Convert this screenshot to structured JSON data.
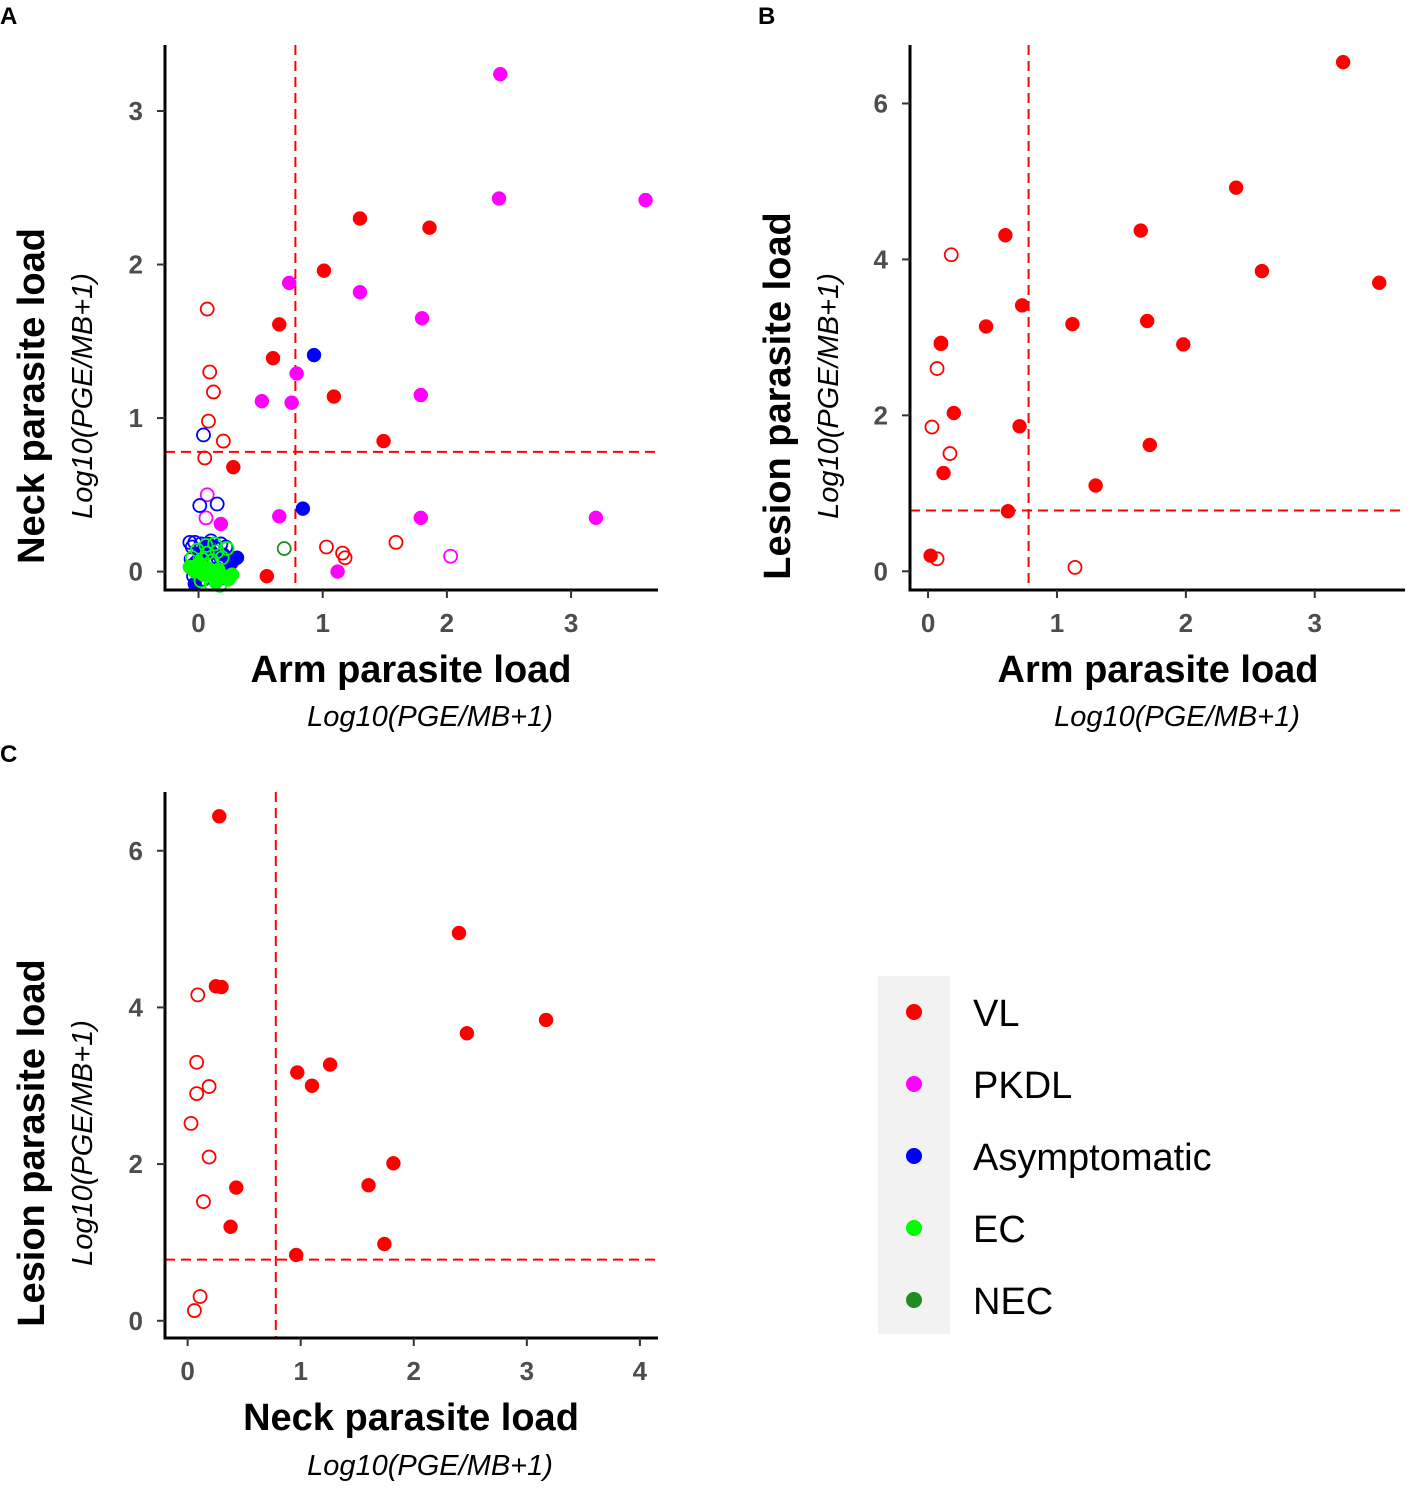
{
  "colors": {
    "VL": "#ff0000",
    "PKDL": "#ff00ff",
    "Asymptomatic": "#0000ff",
    "EC": "#00ff00",
    "NEC": "#228b22",
    "threshold": "#ff0000"
  },
  "legend": {
    "entries": [
      {
        "key": "VL",
        "label": "VL"
      },
      {
        "key": "PKDL",
        "label": "PKDL"
      },
      {
        "key": "Asymptomatic",
        "label": "Asymptomatic"
      },
      {
        "key": "EC",
        "label": "EC"
      },
      {
        "key": "NEC",
        "label": "NEC"
      }
    ]
  },
  "chart_data": [
    {
      "panel": "A",
      "type": "scatter",
      "xlabel": "Arm parasite load",
      "xsublabel": "Log10(PGE/MB+1)",
      "ylabel": "Neck parasite load",
      "ysublabel": "Log10(PGE/MB+1)",
      "xlim": [
        -0.27,
        3.7
      ],
      "ylim": [
        -0.12,
        3.43
      ],
      "xticks": [
        0,
        1,
        2,
        3
      ],
      "yticks": [
        0,
        1,
        2,
        3
      ],
      "threshold_x": 0.78,
      "threshold_y": 0.78,
      "points": [
        {
          "x": 2.43,
          "y": 3.24,
          "g": "PKDL",
          "f": true
        },
        {
          "x": 2.42,
          "y": 2.43,
          "g": "PKDL",
          "f": true
        },
        {
          "x": 3.6,
          "y": 2.42,
          "g": "PKDL",
          "f": true
        },
        {
          "x": 0.73,
          "y": 1.88,
          "g": "PKDL",
          "f": true
        },
        {
          "x": 1.3,
          "y": 1.82,
          "g": "PKDL",
          "f": true
        },
        {
          "x": 1.8,
          "y": 1.65,
          "g": "PKDL",
          "f": true
        },
        {
          "x": 0.79,
          "y": 1.29,
          "g": "PKDL",
          "f": true
        },
        {
          "x": 0.51,
          "y": 1.11,
          "g": "PKDL",
          "f": true
        },
        {
          "x": 0.75,
          "y": 1.1,
          "g": "PKDL",
          "f": true
        },
        {
          "x": 1.79,
          "y": 1.15,
          "g": "PKDL",
          "f": true
        },
        {
          "x": 0.65,
          "y": 0.36,
          "g": "PKDL",
          "f": true
        },
        {
          "x": 1.79,
          "y": 0.35,
          "g": "PKDL",
          "f": true
        },
        {
          "x": 3.2,
          "y": 0.35,
          "g": "PKDL",
          "f": true
        },
        {
          "x": 1.12,
          "y": 0.0,
          "g": "PKDL",
          "f": true
        },
        {
          "x": 0.18,
          "y": 0.31,
          "g": "PKDL",
          "f": true
        },
        {
          "x": 2.03,
          "y": 0.1,
          "g": "PKDL",
          "f": false
        },
        {
          "x": 0.07,
          "y": 0.5,
          "g": "PKDL",
          "f": false
        },
        {
          "x": 0.06,
          "y": 0.35,
          "g": "PKDL",
          "f": false
        },
        {
          "x": 1.3,
          "y": 2.3,
          "g": "VL",
          "f": true
        },
        {
          "x": 1.86,
          "y": 2.24,
          "g": "VL",
          "f": true
        },
        {
          "x": 1.01,
          "y": 1.96,
          "g": "VL",
          "f": true
        },
        {
          "x": 0.65,
          "y": 1.61,
          "g": "VL",
          "f": true
        },
        {
          "x": 0.6,
          "y": 1.39,
          "g": "VL",
          "f": true
        },
        {
          "x": 1.09,
          "y": 1.14,
          "g": "VL",
          "f": true
        },
        {
          "x": 1.49,
          "y": 0.85,
          "g": "VL",
          "f": true
        },
        {
          "x": 0.28,
          "y": 0.68,
          "g": "VL",
          "f": true
        },
        {
          "x": 0.55,
          "y": -0.03,
          "g": "VL",
          "f": true
        },
        {
          "x": 0.07,
          "y": 1.71,
          "g": "VL",
          "f": false
        },
        {
          "x": 0.09,
          "y": 1.3,
          "g": "VL",
          "f": false
        },
        {
          "x": 0.12,
          "y": 1.17,
          "g": "VL",
          "f": false
        },
        {
          "x": 0.08,
          "y": 0.98,
          "g": "VL",
          "f": false
        },
        {
          "x": 0.2,
          "y": 0.85,
          "g": "VL",
          "f": false
        },
        {
          "x": 0.05,
          "y": 0.74,
          "g": "VL",
          "f": false
        },
        {
          "x": 1.03,
          "y": 0.16,
          "g": "VL",
          "f": false
        },
        {
          "x": 1.16,
          "y": 0.12,
          "g": "VL",
          "f": false
        },
        {
          "x": 1.18,
          "y": 0.09,
          "g": "VL",
          "f": false
        },
        {
          "x": 1.59,
          "y": 0.19,
          "g": "VL",
          "f": false
        },
        {
          "x": 0.02,
          "y": 0.1,
          "g": "VL",
          "f": false
        },
        {
          "x": 0.27,
          "y": 0.06,
          "g": "VL",
          "f": true
        },
        {
          "x": 0.93,
          "y": 1.41,
          "g": "Asymptomatic",
          "f": true
        },
        {
          "x": 0.84,
          "y": 0.41,
          "g": "Asymptomatic",
          "f": true
        },
        {
          "x": 0.04,
          "y": 0.89,
          "g": "Asymptomatic",
          "f": false
        },
        {
          "x": 0.01,
          "y": 0.43,
          "g": "Asymptomatic",
          "f": false
        },
        {
          "x": 0.15,
          "y": 0.44,
          "g": "Asymptomatic",
          "f": false
        },
        {
          "x": -0.07,
          "y": 0.19,
          "g": "Asymptomatic",
          "f": false
        },
        {
          "x": -0.05,
          "y": 0.16,
          "g": "Asymptomatic",
          "f": false
        },
        {
          "x": -0.03,
          "y": 0.19,
          "g": "Asymptomatic",
          "f": false
        },
        {
          "x": 0.02,
          "y": 0.18,
          "g": "Asymptomatic",
          "f": false
        },
        {
          "x": 0.06,
          "y": 0.14,
          "g": "Asymptomatic",
          "f": false
        },
        {
          "x": 0.1,
          "y": 0.2,
          "g": "Asymptomatic",
          "f": false
        },
        {
          "x": 0.14,
          "y": 0.15,
          "g": "Asymptomatic",
          "f": false
        },
        {
          "x": 0.18,
          "y": 0.18,
          "g": "Asymptomatic",
          "f": false
        },
        {
          "x": 0.22,
          "y": 0.16,
          "g": "Asymptomatic",
          "f": false
        },
        {
          "x": -0.06,
          "y": 0.08,
          "g": "Asymptomatic",
          "f": false
        },
        {
          "x": -0.02,
          "y": 0.06,
          "g": "Asymptomatic",
          "f": false
        },
        {
          "x": 0.03,
          "y": 0.09,
          "g": "Asymptomatic",
          "f": false
        },
        {
          "x": 0.09,
          "y": 0.05,
          "g": "Asymptomatic",
          "f": false
        },
        {
          "x": 0.16,
          "y": 0.08,
          "g": "Asymptomatic",
          "f": false
        },
        {
          "x": 0.21,
          "y": 0.05,
          "g": "Asymptomatic",
          "f": false
        },
        {
          "x": -0.04,
          "y": -0.03,
          "g": "Asymptomatic",
          "f": false
        },
        {
          "x": 0.04,
          "y": -0.05,
          "g": "Asymptomatic",
          "f": false
        },
        {
          "x": 0.12,
          "y": -0.02,
          "g": "Asymptomatic",
          "f": false
        },
        {
          "x": 0.19,
          "y": -0.04,
          "g": "Asymptomatic",
          "f": false
        },
        {
          "x": -0.05,
          "y": 0.04,
          "g": "Asymptomatic",
          "f": true
        },
        {
          "x": 0.01,
          "y": 0.12,
          "g": "Asymptomatic",
          "f": true
        },
        {
          "x": 0.05,
          "y": 0.0,
          "g": "Asymptomatic",
          "f": true
        },
        {
          "x": 0.1,
          "y": 0.13,
          "g": "Asymptomatic",
          "f": true
        },
        {
          "x": 0.15,
          "y": 0.02,
          "g": "Asymptomatic",
          "f": true
        },
        {
          "x": 0.2,
          "y": 0.11,
          "g": "Asymptomatic",
          "f": true
        },
        {
          "x": 0.25,
          "y": 0.04,
          "g": "Asymptomatic",
          "f": true
        },
        {
          "x": 0.31,
          "y": 0.09,
          "g": "Asymptomatic",
          "f": true
        },
        {
          "x": -0.03,
          "y": -0.08,
          "g": "Asymptomatic",
          "f": true
        },
        {
          "x": 0.08,
          "y": 0.18,
          "g": "Asymptomatic",
          "f": true
        },
        {
          "x": -0.07,
          "y": 0.03,
          "g": "EC",
          "f": true
        },
        {
          "x": -0.03,
          "y": 0.0,
          "g": "EC",
          "f": true
        },
        {
          "x": 0.0,
          "y": 0.05,
          "g": "EC",
          "f": true
        },
        {
          "x": 0.04,
          "y": -0.02,
          "g": "EC",
          "f": true
        },
        {
          "x": 0.08,
          "y": 0.02,
          "g": "EC",
          "f": true
        },
        {
          "x": 0.12,
          "y": -0.04,
          "g": "EC",
          "f": true
        },
        {
          "x": 0.16,
          "y": 0.01,
          "g": "EC",
          "f": true
        },
        {
          "x": 0.2,
          "y": -0.03,
          "g": "EC",
          "f": true
        },
        {
          "x": 0.24,
          "y": -0.05,
          "g": "EC",
          "f": true
        },
        {
          "x": 0.27,
          "y": -0.02,
          "g": "EC",
          "f": true
        },
        {
          "x": 0.14,
          "y": -0.07,
          "g": "EC",
          "f": true
        },
        {
          "x": -0.05,
          "y": 0.09,
          "g": "EC",
          "f": false
        },
        {
          "x": -0.01,
          "y": 0.14,
          "g": "EC",
          "f": false
        },
        {
          "x": 0.03,
          "y": 0.08,
          "g": "EC",
          "f": false
        },
        {
          "x": 0.07,
          "y": 0.12,
          "g": "EC",
          "f": false
        },
        {
          "x": 0.11,
          "y": 0.07,
          "g": "EC",
          "f": false
        },
        {
          "x": 0.15,
          "y": 0.13,
          "g": "EC",
          "f": false
        },
        {
          "x": 0.19,
          "y": 0.09,
          "g": "EC",
          "f": false
        },
        {
          "x": 0.23,
          "y": 0.15,
          "g": "EC",
          "f": false
        },
        {
          "x": 0.02,
          "y": -0.06,
          "g": "EC",
          "f": false
        },
        {
          "x": 0.1,
          "y": -0.08,
          "g": "EC",
          "f": false
        },
        {
          "x": 0.17,
          "y": -0.09,
          "g": "EC",
          "f": false
        },
        {
          "x": 0.06,
          "y": 0.17,
          "g": "EC",
          "f": false
        },
        {
          "x": 0.13,
          "y": 0.18,
          "g": "EC",
          "f": false
        },
        {
          "x": 0.69,
          "y": 0.15,
          "g": "NEC",
          "f": false
        }
      ]
    },
    {
      "panel": "B",
      "type": "scatter",
      "xlabel": "Arm parasite load",
      "xsublabel": "Log10(PGE/MB+1)",
      "ylabel": "Lesion parasite load",
      "ysublabel": "Log10(PGE/MB+1)",
      "xlim": [
        -0.14,
        3.7
      ],
      "ylim": [
        -0.24,
        6.75
      ],
      "xticks": [
        0,
        1,
        2,
        3
      ],
      "yticks": [
        0,
        2,
        4,
        6
      ],
      "threshold_x": 0.78,
      "threshold_y": 0.78,
      "points": [
        {
          "x": 3.22,
          "y": 6.53,
          "g": "VL",
          "f": true
        },
        {
          "x": 2.39,
          "y": 4.92,
          "g": "VL",
          "f": true
        },
        {
          "x": 1.65,
          "y": 4.37,
          "g": "VL",
          "f": true
        },
        {
          "x": 0.6,
          "y": 4.31,
          "g": "VL",
          "f": true
        },
        {
          "x": 2.59,
          "y": 3.85,
          "g": "VL",
          "f": true
        },
        {
          "x": 3.5,
          "y": 3.7,
          "g": "VL",
          "f": true
        },
        {
          "x": 0.73,
          "y": 3.41,
          "g": "VL",
          "f": true
        },
        {
          "x": 1.7,
          "y": 3.21,
          "g": "VL",
          "f": true
        },
        {
          "x": 1.12,
          "y": 3.17,
          "g": "VL",
          "f": true
        },
        {
          "x": 0.45,
          "y": 3.14,
          "g": "VL",
          "f": true
        },
        {
          "x": 0.1,
          "y": 2.93,
          "g": "VL",
          "f": true
        },
        {
          "x": 1.98,
          "y": 2.91,
          "g": "VL",
          "f": true
        },
        {
          "x": 0.2,
          "y": 2.03,
          "g": "VL",
          "f": true
        },
        {
          "x": 0.71,
          "y": 1.86,
          "g": "VL",
          "f": true
        },
        {
          "x": 1.72,
          "y": 1.62,
          "g": "VL",
          "f": true
        },
        {
          "x": 0.12,
          "y": 1.26,
          "g": "VL",
          "f": true
        },
        {
          "x": 1.3,
          "y": 1.1,
          "g": "VL",
          "f": true
        },
        {
          "x": 0.62,
          "y": 0.77,
          "g": "VL",
          "f": true
        },
        {
          "x": 0.02,
          "y": 0.2,
          "g": "VL",
          "f": true
        },
        {
          "x": 0.18,
          "y": 4.06,
          "g": "VL",
          "f": false
        },
        {
          "x": 0.1,
          "y": 2.92,
          "g": "VL",
          "f": false
        },
        {
          "x": 0.07,
          "y": 2.6,
          "g": "VL",
          "f": false
        },
        {
          "x": 0.03,
          "y": 1.85,
          "g": "VL",
          "f": false
        },
        {
          "x": 0.17,
          "y": 1.51,
          "g": "VL",
          "f": false
        },
        {
          "x": 0.07,
          "y": 0.16,
          "g": "VL",
          "f": false
        },
        {
          "x": 1.14,
          "y": 0.05,
          "g": "VL",
          "f": false
        }
      ]
    },
    {
      "panel": "C",
      "type": "scatter",
      "xlabel": "Neck parasite load",
      "xsublabel": "Log10(PGE/MB+1)",
      "ylabel": "Lesion parasite load",
      "ysublabel": "Log10(PGE/MB+1)",
      "xlim": [
        -0.2,
        4.16
      ],
      "ylim": [
        -0.22,
        6.75
      ],
      "xticks": [
        0,
        1,
        2,
        3,
        4
      ],
      "yticks": [
        0,
        2,
        4,
        6
      ],
      "threshold_x": 0.78,
      "threshold_y": 0.78,
      "points": [
        {
          "x": 0.28,
          "y": 6.44,
          "g": "VL",
          "f": true
        },
        {
          "x": 2.4,
          "y": 4.95,
          "g": "VL",
          "f": true
        },
        {
          "x": 0.25,
          "y": 4.27,
          "g": "VL",
          "f": true
        },
        {
          "x": 0.3,
          "y": 4.26,
          "g": "VL",
          "f": true
        },
        {
          "x": 3.17,
          "y": 3.84,
          "g": "VL",
          "f": true
        },
        {
          "x": 2.47,
          "y": 3.67,
          "g": "VL",
          "f": true
        },
        {
          "x": 1.26,
          "y": 3.27,
          "g": "VL",
          "f": true
        },
        {
          "x": 0.97,
          "y": 3.17,
          "g": "VL",
          "f": true
        },
        {
          "x": 1.1,
          "y": 3.0,
          "g": "VL",
          "f": true
        },
        {
          "x": 1.82,
          "y": 2.01,
          "g": "VL",
          "f": true
        },
        {
          "x": 1.6,
          "y": 1.73,
          "g": "VL",
          "f": true
        },
        {
          "x": 0.43,
          "y": 1.7,
          "g": "VL",
          "f": true
        },
        {
          "x": 0.38,
          "y": 1.2,
          "g": "VL",
          "f": true
        },
        {
          "x": 1.74,
          "y": 0.98,
          "g": "VL",
          "f": true
        },
        {
          "x": 0.96,
          "y": 0.84,
          "g": "VL",
          "f": true
        },
        {
          "x": 0.09,
          "y": 4.16,
          "g": "VL",
          "f": false
        },
        {
          "x": 0.08,
          "y": 3.3,
          "g": "VL",
          "f": false
        },
        {
          "x": 0.19,
          "y": 2.99,
          "g": "VL",
          "f": false
        },
        {
          "x": 0.08,
          "y": 2.9,
          "g": "VL",
          "f": false
        },
        {
          "x": 0.03,
          "y": 2.52,
          "g": "VL",
          "f": false
        },
        {
          "x": 0.19,
          "y": 2.09,
          "g": "VL",
          "f": false
        },
        {
          "x": 0.14,
          "y": 1.52,
          "g": "VL",
          "f": false
        },
        {
          "x": 0.11,
          "y": 0.31,
          "g": "VL",
          "f": false
        },
        {
          "x": 0.06,
          "y": 0.13,
          "g": "VL",
          "f": false
        }
      ]
    }
  ]
}
